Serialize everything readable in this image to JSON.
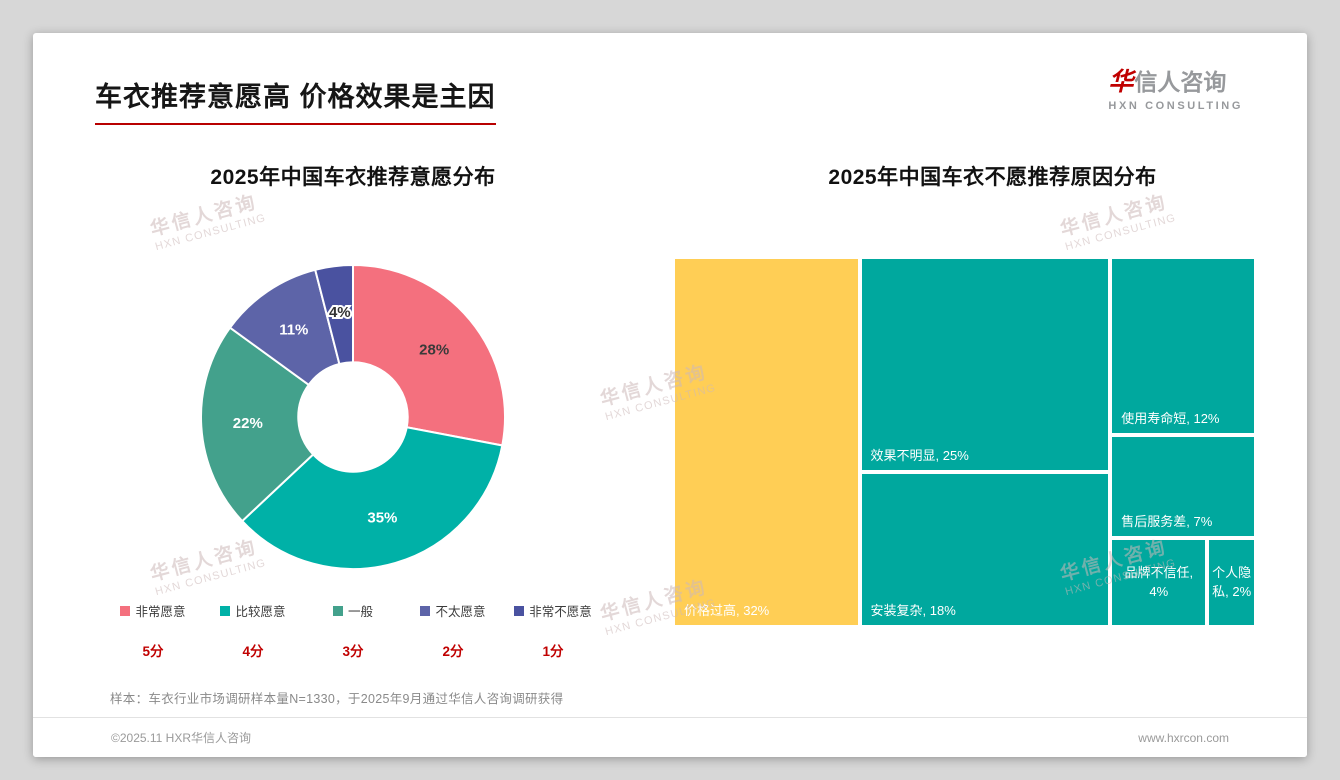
{
  "page": {
    "title": "车衣推荐意愿高 价格效果是主因",
    "logo": {
      "cn_accent": "华",
      "cn_rest": "信人咨询",
      "en": "HXN CONSULTING"
    },
    "watermark": {
      "line1": "华信人咨询",
      "line2": "HXN CONSULTING"
    },
    "sample_note": "样本：车衣行业市场调研样本量N=1330，于2025年9月通过华信人咨询调研获得",
    "footer": {
      "copyright": "©2025.11 HXR华信人咨询",
      "website": "www.hxrcon.com"
    }
  },
  "chart_data": [
    {
      "type": "pie",
      "subtype": "donut",
      "title": "2025年中国车衣推荐意愿分布",
      "unit": "%",
      "inner_radius_ratio": 0.36,
      "start_angle": 0,
      "segments": [
        {
          "label": "非常愿意",
          "score": "5分",
          "value": 28,
          "color": "#F4707E",
          "label_color": "#3a3a3a",
          "halo": false
        },
        {
          "label": "比较愿意",
          "score": "4分",
          "value": 35,
          "color": "#00B1A7",
          "label_color": "#ffffff",
          "halo": false
        },
        {
          "label": "一般",
          "score": "3分",
          "value": 22,
          "color": "#43A18C",
          "label_color": "#ffffff",
          "halo": false
        },
        {
          "label": "不太愿意",
          "score": "2分",
          "value": 11,
          "color": "#5D64A8",
          "label_color": "#ffffff",
          "halo": false
        },
        {
          "label": "非常不愿意",
          "score": "1分",
          "value": 4,
          "color": "#4A52A0",
          "label_color": "#333333",
          "halo": true
        }
      ]
    },
    {
      "type": "treemap",
      "title": "2025年中国车衣不愿推荐原因分布",
      "unit": "%",
      "text_color": "#ffffff",
      "items": [
        {
          "label": "价格过高",
          "value": 32,
          "color": "#FFCE55",
          "align": "bottom"
        },
        {
          "label": "效果不明显",
          "value": 25,
          "color": "#00A89E",
          "align": "bottom"
        },
        {
          "label": "安装复杂",
          "value": 18,
          "color": "#00A89E",
          "align": "bottom"
        },
        {
          "label": "使用寿命短",
          "value": 12,
          "color": "#00A89E",
          "align": "bottom"
        },
        {
          "label": "售后服务差",
          "value": 7,
          "color": "#00A89E",
          "align": "bottom"
        },
        {
          "label": "品牌不信任",
          "value": 4,
          "color": "#00A89E",
          "align": "center"
        },
        {
          "label": "个人隐私",
          "value": 2,
          "color": "#00A89E",
          "align": "center"
        }
      ],
      "layout_columns": [
        [
          0
        ],
        [
          1,
          2
        ],
        [
          3,
          4,
          [
            5,
            6
          ]
        ]
      ]
    }
  ]
}
